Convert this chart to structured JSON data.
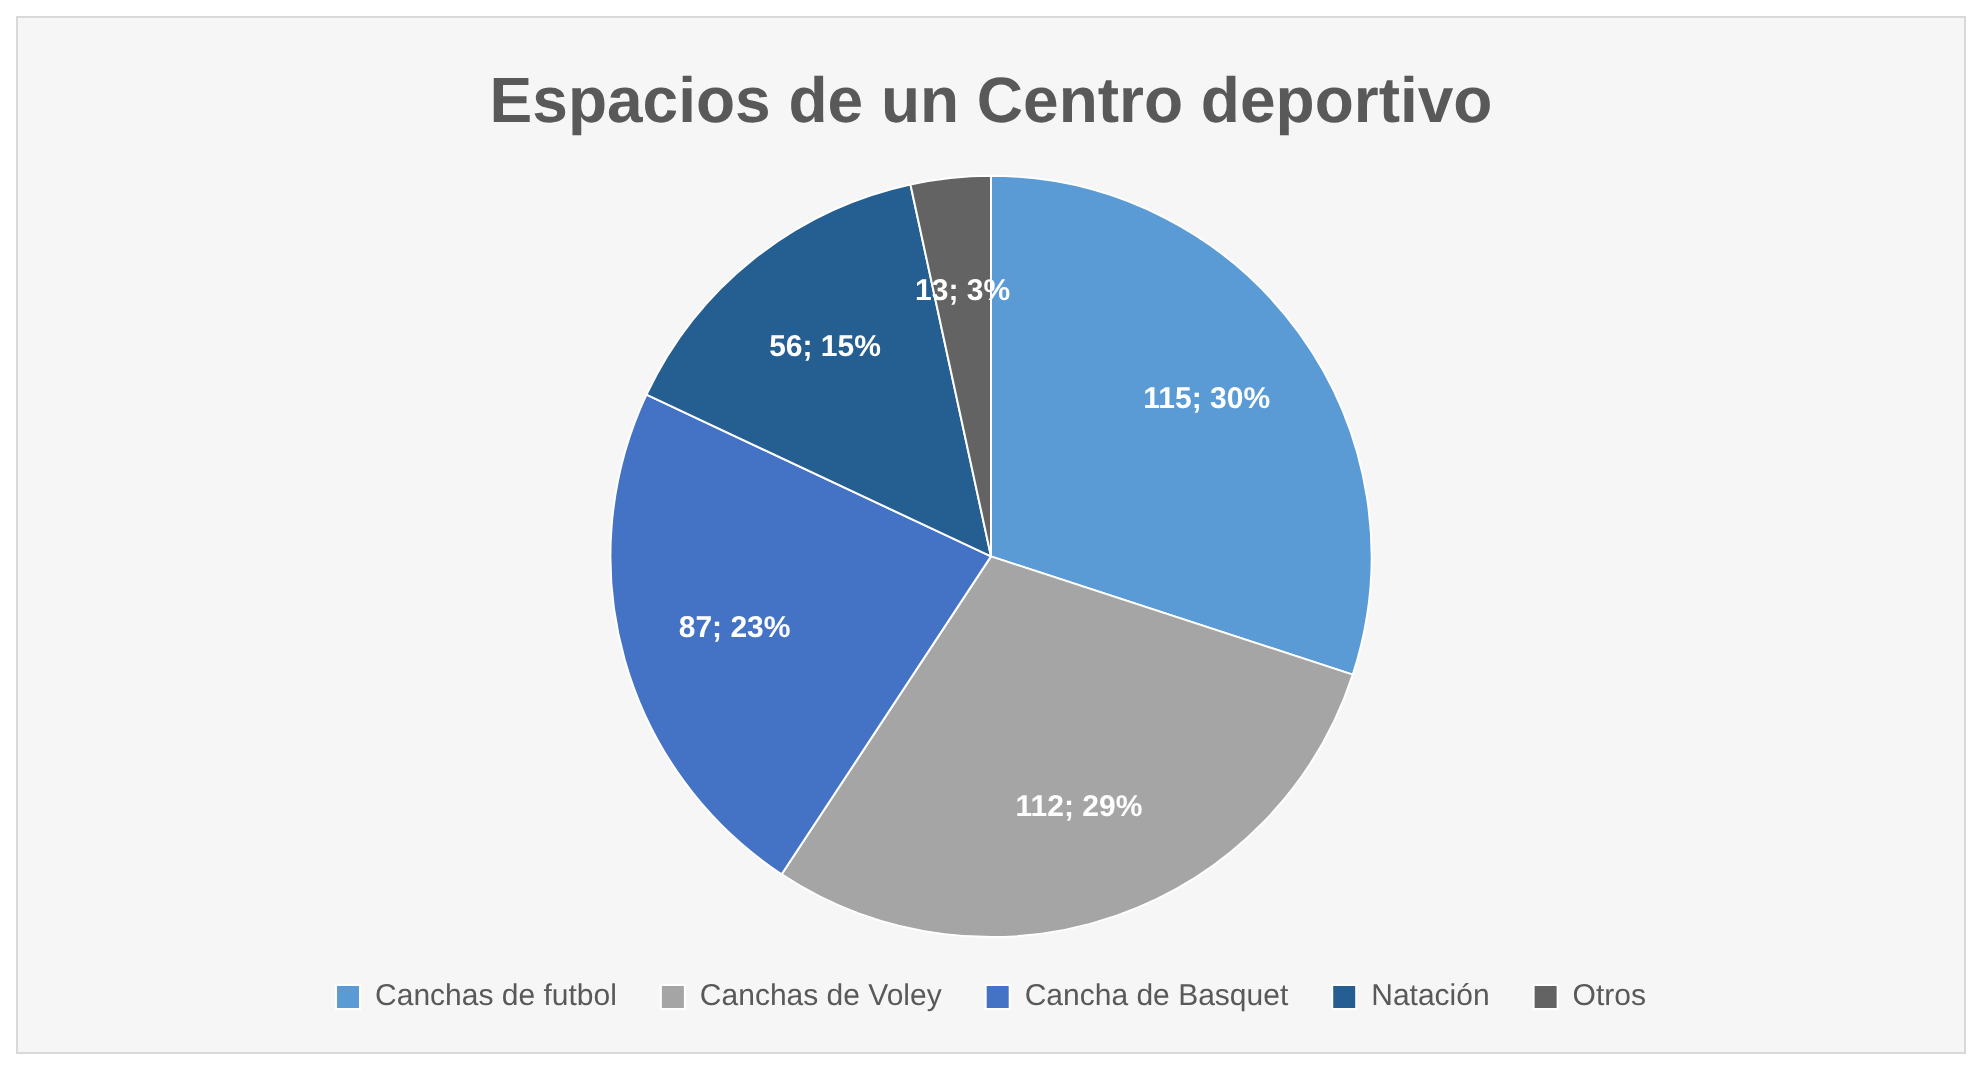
{
  "chart_data": {
    "type": "pie",
    "title": "Espacios de un Centro deportivo",
    "categories": [
      "Canchas de futbol",
      "Canchas de Voley",
      "Cancha de Basquet",
      "Natación",
      "Otros"
    ],
    "values": [
      115,
      112,
      87,
      56,
      13
    ],
    "colors": [
      "#5b9bd5",
      "#a5a5a5",
      "#4472c4",
      "#255e91",
      "#636363"
    ],
    "value_labels": [
      "115; 30%",
      "112; 29%",
      "87; 23%",
      "56; 15%",
      "13; 3%"
    ],
    "legend": "bottom"
  }
}
